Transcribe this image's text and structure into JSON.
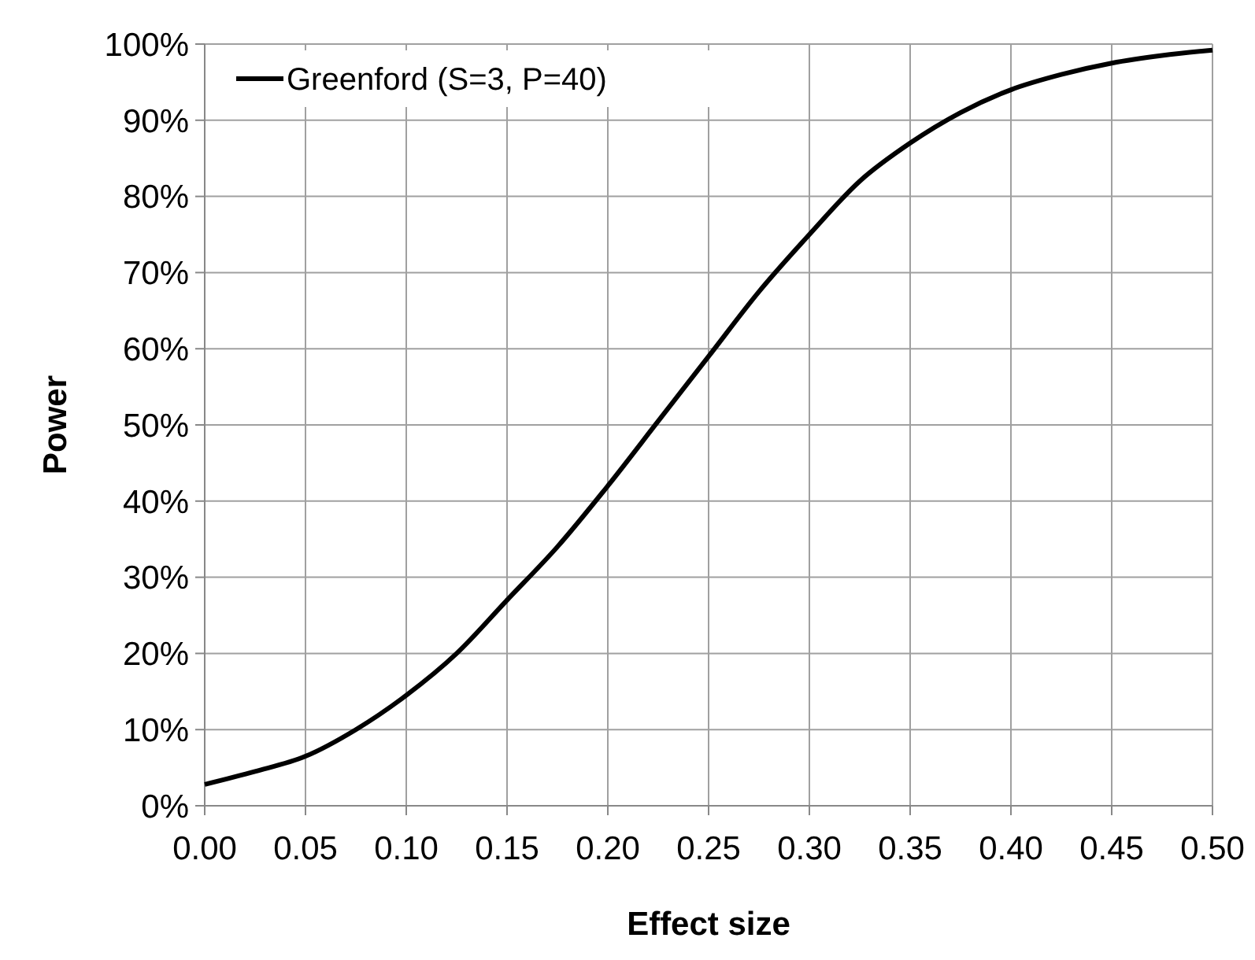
{
  "chart_data": {
    "type": "line",
    "xlabel": "Effect size",
    "ylabel": "Power",
    "x": [
      0,
      0.025,
      0.05,
      0.075,
      0.1,
      0.125,
      0.15,
      0.175,
      0.2,
      0.225,
      0.25,
      0.275,
      0.3,
      0.325,
      0.35,
      0.375,
      0.4,
      0.425,
      0.45,
      0.475,
      0.5
    ],
    "series": [
      {
        "name": "Greenford (S=3, P=40)",
        "color": "#000000",
        "values": [
          2.8,
          4.5,
          6.5,
          10,
          14.5,
          20,
          27,
          34,
          42,
          50.5,
          59,
          67.5,
          75,
          82,
          87,
          91,
          94,
          96,
          97.5,
          98.5,
          99.2
        ]
      }
    ],
    "xlim": [
      0,
      0.5
    ],
    "xticks": [
      {
        "value": 0,
        "label": "0.00"
      },
      {
        "value": 0.05,
        "label": "0.05"
      },
      {
        "value": 0.1,
        "label": "0.10"
      },
      {
        "value": 0.15,
        "label": "0.15"
      },
      {
        "value": 0.2,
        "label": "0.20"
      },
      {
        "value": 0.25,
        "label": "0.25"
      },
      {
        "value": 0.3,
        "label": "0.30"
      },
      {
        "value": 0.35,
        "label": "0.35"
      },
      {
        "value": 0.4,
        "label": "0.40"
      },
      {
        "value": 0.45,
        "label": "0.45"
      },
      {
        "value": 0.5,
        "label": "0.50"
      }
    ],
    "ylim": [
      0,
      100
    ],
    "yticks": [
      {
        "value": 0,
        "label": "0%"
      },
      {
        "value": 10,
        "label": "10%"
      },
      {
        "value": 20,
        "label": "20%"
      },
      {
        "value": 30,
        "label": "30%"
      },
      {
        "value": 40,
        "label": "40%"
      },
      {
        "value": 50,
        "label": "50%"
      },
      {
        "value": 60,
        "label": "60%"
      },
      {
        "value": 70,
        "label": "70%"
      },
      {
        "value": 80,
        "label": "80%"
      },
      {
        "value": 90,
        "label": "90%"
      },
      {
        "value": 100,
        "label": "100%"
      }
    ],
    "grid": true,
    "legend": "top left",
    "marker": "none",
    "line_style": "solid"
  }
}
